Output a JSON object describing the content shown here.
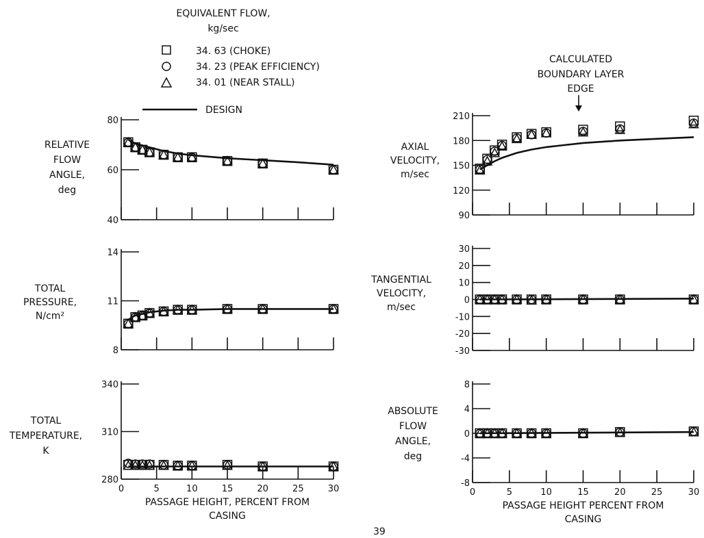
{
  "legend": {
    "title_line1": "EQUIVALENT FLOW,",
    "title_line2": "kg/sec",
    "items": [
      {
        "marker": "square",
        "label": "34. 63 (CHOKE)"
      },
      {
        "marker": "circle",
        "label": "34. 23 (PEAK EFFICIENCY)"
      },
      {
        "marker": "triangle",
        "label": "34. 01 (NEAR STALL)"
      },
      {
        "marker": "line",
        "label": "DESIGN"
      }
    ]
  },
  "annotation": {
    "line1": "CALCULATED",
    "line2": "BOUNDARY LAYER",
    "line3": "EDGE",
    "x": 15
  },
  "page_number": "39",
  "chart_data": [
    {
      "id": "relative_flow_angle",
      "type": "line",
      "ylabel": [
        "RELATIVE",
        "FLOW",
        "ANGLE,",
        "deg"
      ],
      "yticks": [
        "80",
        "60",
        "40"
      ],
      "ylim": [
        40,
        80
      ],
      "xlim": [
        0,
        30
      ],
      "xticks": [
        "0",
        "5",
        "10",
        "15",
        "20",
        "25",
        "30"
      ],
      "design": {
        "x": [
          1,
          2,
          4,
          6,
          8,
          10,
          15,
          20,
          25,
          30
        ],
        "y": [
          72,
          70.5,
          69,
          67.5,
          66.5,
          65.8,
          64.6,
          63.8,
          63,
          62
        ]
      },
      "series": [
        {
          "marker": "square",
          "x": [
            1,
            2,
            3,
            4,
            6,
            8,
            10,
            15,
            20,
            30
          ],
          "y": [
            71,
            69,
            68,
            67,
            66,
            65,
            65,
            63.5,
            62.5,
            60
          ]
        },
        {
          "marker": "circle",
          "x": [
            1,
            2,
            3,
            4,
            6,
            8,
            10,
            15,
            20,
            30
          ],
          "y": [
            71,
            69,
            68,
            67,
            66,
            65,
            65,
            63.5,
            62.5,
            60
          ]
        },
        {
          "marker": "triangle",
          "x": [
            1,
            2,
            3,
            4,
            6,
            8,
            10,
            15,
            20,
            30
          ],
          "y": [
            71,
            69,
            68,
            67,
            66,
            65,
            65,
            63.5,
            62.5,
            60
          ]
        }
      ]
    },
    {
      "id": "total_pressure",
      "type": "line",
      "ylabel": [
        "TOTAL",
        "PRESSURE,",
        "N/cm²"
      ],
      "yticks": [
        "14",
        "11",
        "8"
      ],
      "ylim": [
        8,
        14
      ],
      "xlim": [
        0,
        30
      ],
      "xticks": [
        "0",
        "5",
        "10",
        "15",
        "20",
        "25",
        "30"
      ],
      "design": {
        "x": [
          1,
          1.5,
          2,
          3,
          4,
          6,
          8,
          10,
          15,
          20,
          30
        ],
        "y": [
          9.8,
          10.0,
          10.1,
          10.2,
          10.3,
          10.4,
          10.45,
          10.45,
          10.5,
          10.5,
          10.5
        ]
      },
      "series": [
        {
          "marker": "square",
          "x": [
            1,
            2,
            3,
            4,
            6,
            8,
            10,
            15,
            20,
            30
          ],
          "y": [
            9.6,
            10.0,
            10.1,
            10.25,
            10.35,
            10.45,
            10.45,
            10.5,
            10.5,
            10.5
          ]
        },
        {
          "marker": "circle",
          "x": [
            1,
            2,
            3,
            4,
            6,
            8,
            10,
            15,
            20,
            30
          ],
          "y": [
            9.6,
            10.0,
            10.1,
            10.25,
            10.35,
            10.45,
            10.45,
            10.5,
            10.5,
            10.5
          ]
        },
        {
          "marker": "triangle",
          "x": [
            1,
            2,
            3,
            4,
            6,
            8,
            10,
            15,
            20,
            30
          ],
          "y": [
            9.6,
            10.0,
            10.1,
            10.25,
            10.35,
            10.45,
            10.45,
            10.5,
            10.5,
            10.5
          ]
        }
      ]
    },
    {
      "id": "total_temperature",
      "type": "line",
      "ylabel": [
        "TOTAL",
        "TEMPERATURE,",
        "K"
      ],
      "yticks": [
        "340",
        "310",
        "280"
      ],
      "ylim": [
        280,
        340
      ],
      "xlim": [
        0,
        30
      ],
      "xticks": [
        "0",
        "5",
        "10",
        "15",
        "20",
        "25",
        "30"
      ],
      "xlabel": [
        "PASSAGE HEIGHT,  PERCENT FROM",
        "CASING"
      ],
      "design": {
        "x": [
          1,
          30
        ],
        "y": [
          288,
          288
        ]
      },
      "series": [
        {
          "marker": "square",
          "x": [
            1,
            2,
            3,
            4,
            6,
            8,
            10,
            15,
            20,
            30
          ],
          "y": [
            289,
            289,
            289,
            289,
            289,
            288.5,
            288.5,
            289,
            288,
            288
          ]
        },
        {
          "marker": "circle",
          "x": [
            1,
            2,
            3,
            4,
            6,
            8,
            10,
            15,
            20,
            30
          ],
          "y": [
            290,
            289.5,
            289.5,
            289.5,
            289,
            288.5,
            288.5,
            289,
            288,
            288
          ]
        },
        {
          "marker": "triangle",
          "x": [
            1,
            2,
            3,
            4,
            6,
            8,
            10,
            15,
            20,
            30
          ],
          "y": [
            288.5,
            288.5,
            288.5,
            288.5,
            288.5,
            288.5,
            288.5,
            288.5,
            288,
            288
          ]
        }
      ]
    },
    {
      "id": "axial_velocity",
      "type": "line",
      "ylabel": [
        "AXIAL",
        "VELOCITY,",
        "m/sec"
      ],
      "yticks": [
        "210",
        "180",
        "150",
        "120",
        "90"
      ],
      "ylim": [
        90,
        210
      ],
      "xlim": [
        0,
        30
      ],
      "xticks": [
        "0",
        "5",
        "10",
        "15",
        "20",
        "25",
        "30"
      ],
      "design": {
        "x": [
          1,
          2,
          3,
          4,
          5,
          6,
          8,
          10,
          12,
          15,
          20,
          25,
          30
        ],
        "y": [
          145,
          150,
          155,
          159,
          162,
          165,
          169,
          172,
          174,
          177,
          180,
          182,
          184
        ]
      },
      "series": [
        {
          "marker": "square",
          "x": [
            1,
            2,
            3,
            4,
            6,
            8,
            10,
            15,
            20,
            30
          ],
          "y": [
            146,
            158,
            168,
            175,
            184,
            188,
            190,
            193,
            197,
            204
          ]
        },
        {
          "marker": "circle",
          "x": [
            1,
            2,
            3,
            4,
            6,
            8,
            10,
            15,
            20,
            30
          ],
          "y": [
            145,
            157,
            167,
            174,
            183,
            187,
            189,
            191,
            194,
            201
          ]
        },
        {
          "marker": "triangle",
          "x": [
            1,
            2,
            3,
            4,
            6,
            8,
            10,
            15,
            20,
            30
          ],
          "y": [
            144,
            155,
            165,
            173,
            182,
            187,
            189,
            190,
            193,
            200
          ]
        }
      ]
    },
    {
      "id": "tangential_velocity",
      "type": "line",
      "ylabel": [
        "TANGENTIAL",
        "VELOCITY,",
        "m/sec"
      ],
      "yticks": [
        "30",
        "20",
        "10",
        "0",
        "-10",
        "-20",
        "-30"
      ],
      "ylim": [
        -30,
        30
      ],
      "xlim": [
        0,
        30
      ],
      "xticks": [
        "0",
        "5",
        "10",
        "15",
        "20",
        "25",
        "30"
      ],
      "design": {
        "x": [
          1,
          30
        ],
        "y": [
          0,
          0.5
        ]
      },
      "series": [
        {
          "marker": "square",
          "x": [
            1,
            2,
            3,
            4,
            6,
            8,
            10,
            15,
            20,
            30
          ],
          "y": [
            0,
            0,
            0,
            0,
            0,
            0,
            0,
            0,
            0,
            0
          ]
        },
        {
          "marker": "circle",
          "x": [
            1,
            2,
            3,
            4,
            6,
            8,
            10,
            15,
            20,
            30
          ],
          "y": [
            0,
            0,
            0,
            0,
            0,
            0,
            0,
            0,
            0,
            0
          ]
        },
        {
          "marker": "triangle",
          "x": [
            1,
            2,
            3,
            4,
            6,
            8,
            10,
            15,
            20,
            30
          ],
          "y": [
            0,
            0,
            0,
            0,
            0,
            -0.5,
            0,
            0,
            0,
            0
          ]
        }
      ]
    },
    {
      "id": "absolute_flow_angle",
      "type": "line",
      "ylabel": [
        "ABSOLUTE",
        "FLOW",
        "ANGLE,",
        "deg"
      ],
      "yticks": [
        "8",
        "4",
        "0",
        "-4",
        "-8"
      ],
      "ylim": [
        -8,
        8
      ],
      "xlim": [
        0,
        30
      ],
      "xticks": [
        "0",
        "5",
        "10",
        "15",
        "20",
        "25",
        "30"
      ],
      "xlabel": [
        "PASSAGE HEIGHT  PERCENT FROM",
        "CASING"
      ],
      "design": {
        "x": [
          1,
          30
        ],
        "y": [
          0,
          0.2
        ]
      },
      "series": [
        {
          "marker": "square",
          "x": [
            1,
            2,
            3,
            4,
            6,
            8,
            10,
            15,
            20,
            30
          ],
          "y": [
            0,
            0,
            0,
            0,
            0,
            0,
            0,
            0,
            0.2,
            0.3
          ]
        },
        {
          "marker": "circle",
          "x": [
            1,
            2,
            3,
            4,
            6,
            8,
            10,
            15,
            20,
            30
          ],
          "y": [
            0,
            0,
            0,
            0,
            0,
            0,
            0,
            0,
            0.2,
            0.3
          ]
        },
        {
          "marker": "triangle",
          "x": [
            1,
            2,
            3,
            4,
            6,
            8,
            10,
            15,
            20,
            30
          ],
          "y": [
            0,
            0,
            0,
            0,
            0,
            0,
            0,
            0,
            0.1,
            0.2
          ]
        }
      ]
    }
  ]
}
